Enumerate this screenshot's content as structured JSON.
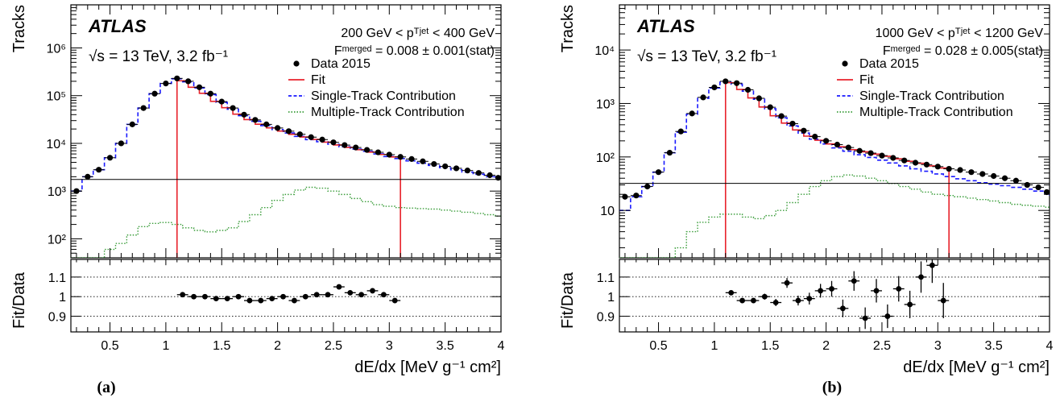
{
  "captions": [
    "(a)",
    "(b)"
  ],
  "chart_data": [
    {
      "type": "histogram",
      "panel": "(a)",
      "experiment": "ATLAS",
      "energy_label": "√s = 13 TeV, 3.2 fb⁻¹",
      "pt_label": "200 GeV < pᵀʲᵉᵗ < 400 GeV",
      "fmerged_label": "Fᵐᵉʳᵍᵉᵈ = 0.008 ± 0.001(stat)",
      "xlabel": "dE/dx [MeV g⁻¹ cm²]",
      "ylabel": "Tracks",
      "ratio_ylabel": "Fit/Data",
      "xlim": [
        0.15,
        4.0
      ],
      "ylim": [
        40,
        8000000
      ],
      "yscale": "log",
      "ratio_ylim": [
        0.82,
        1.19
      ],
      "x_ticks": [
        0.5,
        1,
        1.5,
        2,
        2.5,
        3,
        3.5,
        4
      ],
      "x_tick_labels": [
        "0.5",
        "1",
        "1.5",
        "2",
        "2.5",
        "3",
        "3.5",
        "4"
      ],
      "y_ticks": [
        100,
        1000,
        10000,
        100000,
        1000000
      ],
      "y_tick_labels": [
        "10²",
        "10³",
        "10⁴",
        "10⁵",
        "10⁶"
      ],
      "ratio_ticks": [
        0.9,
        1.0,
        1.1
      ],
      "ratio_tick_labels": [
        "0.9",
        "1",
        "1.1"
      ],
      "fit_range": [
        1.1,
        3.1
      ],
      "legend": [
        {
          "label": "Data 2015",
          "style": "marker",
          "color": "#000000"
        },
        {
          "label": "Fit",
          "style": "solid",
          "color": "#e8222b"
        },
        {
          "label": "Single-Track Contribution",
          "style": "dashed",
          "color": "#1a1aff"
        },
        {
          "label": "Multiple-Track Contribution",
          "style": "dotted",
          "color": "#3a9d3a"
        }
      ],
      "bins": [
        0.15,
        0.25,
        0.35,
        0.45,
        0.55,
        0.65,
        0.75,
        0.85,
        0.95,
        1.05,
        1.15,
        1.25,
        1.35,
        1.45,
        1.55,
        1.65,
        1.75,
        1.85,
        1.95,
        2.05,
        2.15,
        2.25,
        2.35,
        2.45,
        2.55,
        2.65,
        2.75,
        2.85,
        2.95,
        3.05,
        3.15,
        3.25,
        3.35,
        3.45,
        3.55,
        3.65,
        3.75,
        3.85,
        3.95,
        4.0
      ],
      "data": [
        1000,
        2000,
        2800,
        5000,
        10000,
        25000,
        55000,
        110000,
        180000,
        230000,
        200000,
        150000,
        110000,
        75000,
        55000,
        40000,
        31000,
        25000,
        21000,
        18000,
        15500,
        13500,
        12000,
        10500,
        9200,
        8200,
        7300,
        6500,
        5800,
        5200,
        4700,
        4200,
        3700,
        3300,
        3000,
        2700,
        2400,
        2150,
        1900,
        1750
      ],
      "single_track": [
        1000,
        2000,
        2800,
        5000,
        10000,
        25000,
        55000,
        110000,
        180000,
        225000,
        195000,
        145000,
        105000,
        72000,
        52000,
        38000,
        29000,
        23500,
        19500,
        16500,
        14000,
        12000,
        10800,
        9600,
        8500,
        7600,
        6800,
        6000,
        5300,
        4800,
        4300,
        3850,
        3450,
        3100,
        2800,
        2500,
        2250,
        2000,
        1800,
        1650
      ],
      "multiple_track": [
        10,
        20,
        40,
        60,
        80,
        120,
        180,
        210,
        220,
        200,
        170,
        150,
        140,
        150,
        170,
        230,
        320,
        450,
        640,
        850,
        1050,
        1200,
        1150,
        1000,
        850,
        700,
        600,
        520,
        480,
        450,
        440,
        430,
        420,
        400,
        380,
        360,
        340,
        320,
        300,
        290
      ],
      "fit_bins": [
        1.1,
        1.2,
        1.3,
        1.4,
        1.5,
        1.6,
        1.7,
        1.8,
        1.9,
        2.0,
        2.1,
        2.2,
        2.3,
        2.4,
        2.5,
        2.6,
        2.7,
        2.8,
        2.9,
        3.0,
        3.1
      ],
      "fit": [
        205000,
        150000,
        112000,
        76000,
        56000,
        41000,
        31500,
        25200,
        21100,
        18100,
        15500,
        13600,
        12100,
        10600,
        9250,
        8250,
        7350,
        6550,
        5850,
        5200
      ],
      "ratio_x": [
        1.15,
        1.25,
        1.35,
        1.45,
        1.55,
        1.65,
        1.75,
        1.85,
        1.95,
        2.05,
        2.15,
        2.25,
        2.35,
        2.45,
        2.55,
        2.65,
        2.75,
        2.85,
        2.95,
        3.05
      ],
      "ratio_y": [
        1.01,
        1.0,
        1.0,
        0.99,
        0.99,
        1.0,
        0.98,
        0.98,
        0.99,
        1.0,
        0.98,
        1.0,
        1.01,
        1.01,
        1.05,
        1.02,
        1.01,
        1.03,
        1.01,
        0.98
      ],
      "ratio_err": [
        0.005,
        0.005,
        0.005,
        0.005,
        0.005,
        0.006,
        0.006,
        0.007,
        0.007,
        0.008,
        0.008,
        0.008,
        0.009,
        0.009,
        0.01,
        0.01,
        0.01,
        0.012,
        0.012,
        0.012
      ]
    },
    {
      "type": "histogram",
      "panel": "(b)",
      "experiment": "ATLAS",
      "energy_label": "√s = 13 TeV, 3.2 fb⁻¹",
      "pt_label": "1000 GeV < pᵀʲᵉᵗ < 1200 GeV",
      "fmerged_label": "Fᵐᵉʳᵍᵉᵈ = 0.028 ± 0.005(stat)",
      "xlabel": "dE/dx [MeV g⁻¹ cm²]",
      "ylabel": "Tracks",
      "ratio_ylabel": "Fit/Data",
      "xlim": [
        0.15,
        4.0
      ],
      "ylim": [
        1.3,
        70000
      ],
      "yscale": "log",
      "ratio_ylim": [
        0.82,
        1.19
      ],
      "x_ticks": [
        0.5,
        1,
        1.5,
        2,
        2.5,
        3,
        3.5,
        4
      ],
      "x_tick_labels": [
        "0.5",
        "1",
        "1.5",
        "2",
        "2.5",
        "3",
        "3.5",
        "4"
      ],
      "y_ticks": [
        10,
        100,
        1000,
        10000
      ],
      "y_tick_labels": [
        "10",
        "10²",
        "10³",
        "10⁴"
      ],
      "ratio_ticks": [
        0.9,
        1.0,
        1.1
      ],
      "ratio_tick_labels": [
        "0.9",
        "1",
        "1.1"
      ],
      "fit_range": [
        1.1,
        3.1
      ],
      "legend": [
        {
          "label": "Data 2015",
          "style": "marker",
          "color": "#000000"
        },
        {
          "label": "Fit",
          "style": "solid",
          "color": "#e8222b"
        },
        {
          "label": "Single-Track Contribution",
          "style": "dashed",
          "color": "#1a1aff"
        },
        {
          "label": "Multiple-Track Contribution",
          "style": "dotted",
          "color": "#3a9d3a"
        }
      ],
      "bins": [
        0.15,
        0.25,
        0.35,
        0.45,
        0.55,
        0.65,
        0.75,
        0.85,
        0.95,
        1.05,
        1.15,
        1.25,
        1.35,
        1.45,
        1.55,
        1.65,
        1.75,
        1.85,
        1.95,
        2.05,
        2.15,
        2.25,
        2.35,
        2.45,
        2.55,
        2.65,
        2.75,
        2.85,
        2.95,
        3.05,
        3.15,
        3.25,
        3.35,
        3.45,
        3.55,
        3.65,
        3.75,
        3.85,
        3.95,
        4.0
      ],
      "data": [
        18,
        19,
        28,
        52,
        120,
        300,
        650,
        1300,
        2000,
        2600,
        2400,
        1800,
        1250,
        850,
        580,
        420,
        310,
        240,
        200,
        170,
        150,
        130,
        118,
        106,
        96,
        86,
        78,
        72,
        66,
        60,
        57,
        52,
        48,
        44,
        40,
        36,
        30,
        27,
        22,
        32
      ],
      "single_track": [
        10,
        18,
        28,
        52,
        120,
        290,
        630,
        1250,
        1950,
        2500,
        2300,
        1700,
        1200,
        800,
        540,
        380,
        280,
        215,
        175,
        148,
        128,
        110,
        98,
        87,
        77,
        68,
        60,
        54,
        48,
        43,
        39,
        36,
        33,
        31,
        29,
        27,
        25,
        23,
        21,
        19
      ],
      "multiple_track": [
        0.1,
        0.2,
        0.3,
        0.6,
        1,
        2,
        4,
        6,
        7.5,
        8.5,
        8.5,
        7.5,
        7,
        8,
        10,
        14,
        20,
        28,
        36,
        43,
        46,
        44,
        40,
        36,
        32,
        28,
        25,
        22,
        20,
        19,
        18,
        17,
        16,
        15,
        14,
        13,
        12.5,
        12,
        11.5,
        11
      ],
      "fit_bins": [
        1.1,
        1.2,
        1.3,
        1.4,
        1.5,
        1.6,
        1.7,
        1.8,
        1.9,
        2.0,
        2.1,
        2.2,
        2.3,
        2.4,
        2.5,
        2.6,
        2.7,
        2.8,
        2.9,
        3.0,
        3.1
      ],
      "fit": [
        2450,
        1830,
        1270,
        860,
        590,
        430,
        320,
        245,
        205,
        175,
        155,
        137,
        125,
        113,
        103,
        92,
        83,
        76,
        68,
        62
      ],
      "ratio_x": [
        1.15,
        1.25,
        1.35,
        1.45,
        1.55,
        1.65,
        1.75,
        1.85,
        1.95,
        2.05,
        2.15,
        2.25,
        2.35,
        2.45,
        2.55,
        2.65,
        2.75,
        2.85,
        2.95,
        3.05
      ],
      "ratio_y": [
        1.02,
        0.98,
        0.98,
        1.0,
        0.97,
        1.07,
        0.98,
        0.99,
        1.03,
        1.04,
        0.94,
        1.08,
        0.89,
        1.03,
        0.9,
        1.04,
        0.96,
        1.1,
        1.16,
        0.98
      ],
      "ratio_err": [
        0.008,
        0.01,
        0.012,
        0.015,
        0.018,
        0.025,
        0.025,
        0.03,
        0.035,
        0.04,
        0.045,
        0.05,
        0.055,
        0.06,
        0.06,
        0.065,
        0.07,
        0.08,
        0.09,
        0.09
      ]
    }
  ]
}
